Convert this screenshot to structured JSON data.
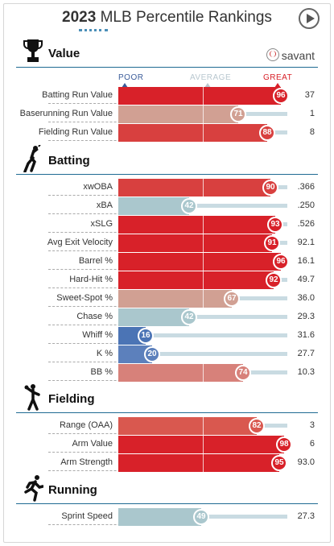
{
  "header": {
    "year": "2023",
    "title_rest": "MLB Percentile Rankings"
  },
  "scale": {
    "poor": "POOR",
    "average": "AVERAGE",
    "great": "GREAT"
  },
  "brand": "savant",
  "sections": {
    "value": {
      "label": "Value",
      "rows": [
        {
          "label": "Batting Run Value",
          "percentile": 96,
          "value": "37",
          "color": "#d82129"
        },
        {
          "label": "Baserunning Run Value",
          "percentile": 71,
          "value": "1",
          "color": "#d1a093"
        },
        {
          "label": "Fielding Run Value",
          "percentile": 88,
          "value": "8",
          "color": "#d8403f"
        }
      ]
    },
    "batting": {
      "label": "Batting",
      "rows": [
        {
          "label": "xwOBA",
          "percentile": 90,
          "value": ".366",
          "color": "#d8403f"
        },
        {
          "label": "xBA",
          "percentile": 42,
          "value": ".250",
          "color": "#aac7cd"
        },
        {
          "label": "xSLG",
          "percentile": 93,
          "value": ".526",
          "color": "#d82129"
        },
        {
          "label": "Avg Exit Velocity",
          "percentile": 91,
          "value": "92.1",
          "color": "#d82129"
        },
        {
          "label": "Barrel %",
          "percentile": 96,
          "value": "16.1",
          "color": "#d82129"
        },
        {
          "label": "Hard-Hit %",
          "percentile": 92,
          "value": "49.7",
          "color": "#d82129"
        },
        {
          "label": "Sweet-Spot %",
          "percentile": 67,
          "value": "36.0",
          "color": "#d1a093"
        },
        {
          "label": "Chase %",
          "percentile": 42,
          "value": "29.3",
          "color": "#aac7cd"
        },
        {
          "label": "Whiff %",
          "percentile": 16,
          "value": "31.6",
          "color": "#4b74b5"
        },
        {
          "label": "K %",
          "percentile": 20,
          "value": "27.7",
          "color": "#5c80bc"
        },
        {
          "label": "BB %",
          "percentile": 74,
          "value": "10.3",
          "color": "#d7817a"
        }
      ]
    },
    "fielding": {
      "label": "Fielding",
      "rows": [
        {
          "label": "Range (OAA)",
          "percentile": 82,
          "value": "3",
          "color": "#d9584f"
        },
        {
          "label": "Arm Value",
          "percentile": 98,
          "value": "6",
          "color": "#d82129"
        },
        {
          "label": "Arm Strength",
          "percentile": 95,
          "value": "93.0",
          "color": "#d82129"
        }
      ]
    },
    "running": {
      "label": "Running",
      "rows": [
        {
          "label": "Sprint Speed",
          "percentile": 49,
          "value": "27.3",
          "color": "#aac7cd"
        }
      ]
    }
  },
  "icons": {
    "value": "trophy-icon",
    "batting": "batter-icon",
    "fielding": "fielder-icon",
    "running": "runner-icon",
    "header": "play-icon"
  }
}
